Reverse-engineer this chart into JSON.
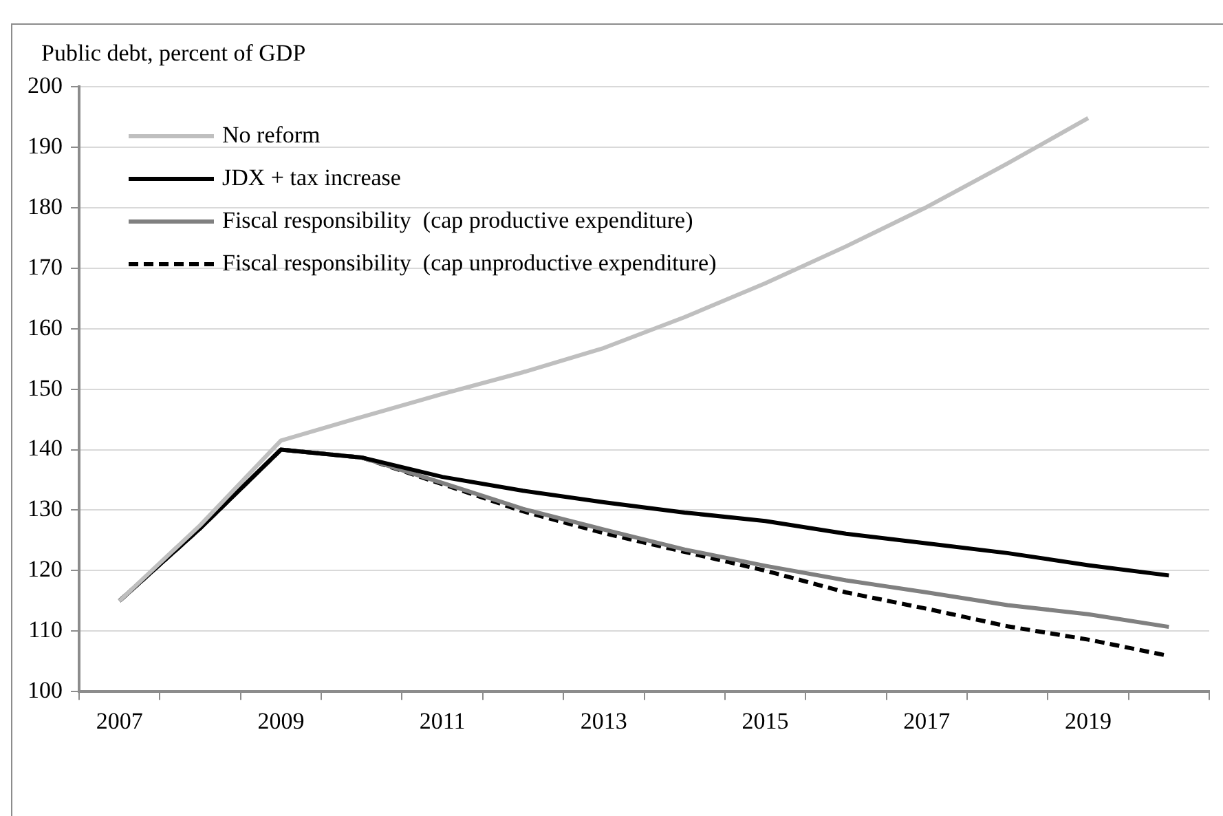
{
  "chart_data": {
    "type": "line",
    "ylabel": "Public debt, percent of GDP",
    "categories": [
      "2007",
      null,
      "2009",
      null,
      "2011",
      null,
      "2013",
      null,
      "2015",
      null,
      "2017",
      null,
      "2019",
      null
    ],
    "series": [
      {
        "name": "No reform",
        "color": "#bfbfbf",
        "line_style": "solid",
        "values": [
          115,
          127.5,
          141.5,
          145.4,
          149.2,
          152.8,
          156.8,
          161.9,
          167.5,
          173.6,
          180.1,
          187.3,
          194.8,
          null
        ]
      },
      {
        "name": "JDX + tax increase",
        "color": "#000000",
        "line_style": "solid",
        "values": [
          115,
          127,
          140,
          138.7,
          135.5,
          133.2,
          131.3,
          129.6,
          128.2,
          126.1,
          124.5,
          122.9,
          120.9,
          119.2
        ]
      },
      {
        "name": "Fiscal responsibility  (cap productive expenditure)",
        "color": "#808080",
        "line_style": "solid",
        "values": [
          115,
          127,
          140,
          138.7,
          134.5,
          130.2,
          126.8,
          123.5,
          120.8,
          118.4,
          116.4,
          114.3,
          112.8,
          110.7
        ]
      },
      {
        "name": "Fiscal responsibility  (cap unproductive expenditure)",
        "color": "#000000",
        "line_style": "dashed",
        "values": [
          115,
          127,
          140,
          138.7,
          134.3,
          129.8,
          126.2,
          123.1,
          120,
          116.4,
          113.7,
          110.8,
          108.6,
          105.9
        ]
      }
    ],
    "ylim": [
      100,
      200
    ],
    "yticks": [
      100,
      110,
      120,
      130,
      140,
      150,
      160,
      170,
      180,
      190,
      200
    ],
    "grid": "y",
    "legend": "top left",
    "marker": "none"
  }
}
